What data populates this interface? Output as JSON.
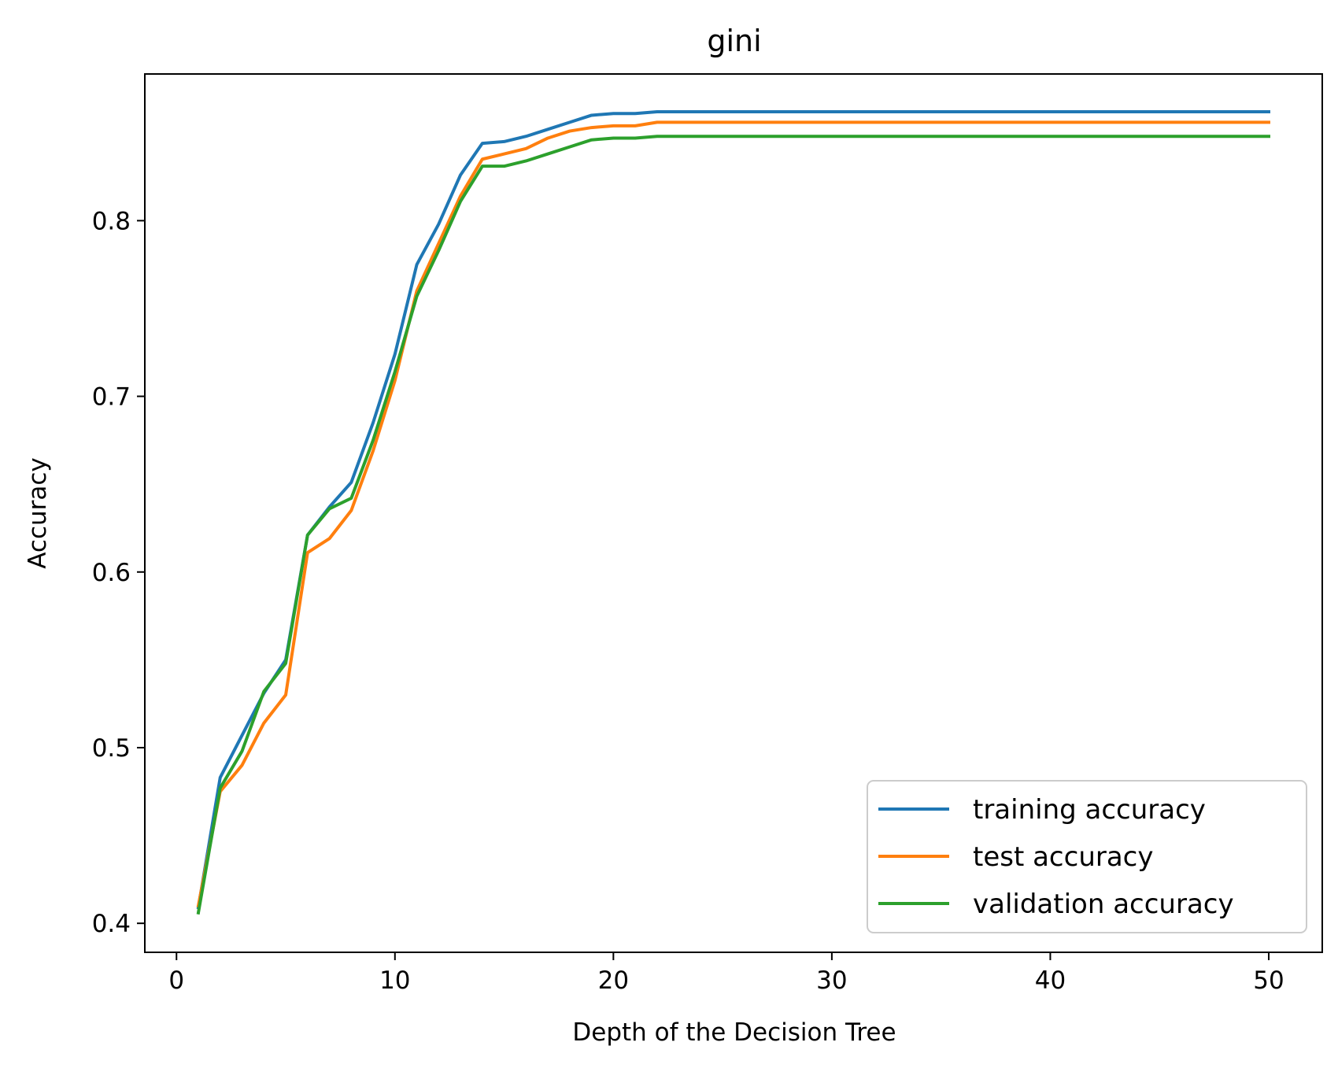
{
  "chart_data": {
    "type": "line",
    "title": "gini",
    "xlabel": "Depth of the Decision Tree",
    "ylabel": "Accuracy",
    "xlim": [
      -1.45,
      52.45
    ],
    "ylim": [
      0.3835,
      0.8835
    ],
    "xticks": [
      0,
      10,
      20,
      30,
      40,
      50
    ],
    "yticks": [
      0.4,
      0.5,
      0.6,
      0.7,
      0.8
    ],
    "xtick_labels": [
      "0",
      "10",
      "20",
      "30",
      "40",
      "50"
    ],
    "ytick_labels": [
      "0.4",
      "0.5",
      "0.6",
      "0.7",
      "0.8"
    ],
    "grid": false,
    "legend_position": "lower right",
    "x": [
      1,
      2,
      3,
      4,
      5,
      6,
      7,
      8,
      9,
      10,
      11,
      12,
      13,
      14,
      15,
      16,
      17,
      18,
      19,
      20,
      21,
      22,
      23,
      24,
      25,
      26,
      27,
      28,
      29,
      30,
      31,
      32,
      33,
      34,
      35,
      36,
      37,
      38,
      39,
      40,
      41,
      42,
      43,
      44,
      45,
      46,
      47,
      48,
      49,
      50
    ],
    "series": [
      {
        "name": "training accuracy",
        "color": "#1f77b4",
        "values": [
          0.409,
          0.483,
          0.507,
          0.531,
          0.55,
          0.621,
          0.637,
          0.651,
          0.685,
          0.724,
          0.775,
          0.798,
          0.826,
          0.844,
          0.845,
          0.848,
          0.852,
          0.856,
          0.86,
          0.861,
          0.861,
          0.862,
          0.862,
          0.862,
          0.862,
          0.862,
          0.862,
          0.862,
          0.862,
          0.862,
          0.862,
          0.862,
          0.862,
          0.862,
          0.862,
          0.862,
          0.862,
          0.862,
          0.862,
          0.862,
          0.862,
          0.862,
          0.862,
          0.862,
          0.862,
          0.862,
          0.862,
          0.862,
          0.862,
          0.862
        ]
      },
      {
        "name": "test accuracy",
        "color": "#ff7f0e",
        "values": [
          0.41,
          0.475,
          0.49,
          0.514,
          0.53,
          0.611,
          0.619,
          0.635,
          0.669,
          0.709,
          0.76,
          0.787,
          0.814,
          0.835,
          0.838,
          0.841,
          0.847,
          0.851,
          0.853,
          0.854,
          0.854,
          0.856,
          0.856,
          0.856,
          0.856,
          0.856,
          0.856,
          0.856,
          0.856,
          0.856,
          0.856,
          0.856,
          0.856,
          0.856,
          0.856,
          0.856,
          0.856,
          0.856,
          0.856,
          0.856,
          0.856,
          0.856,
          0.856,
          0.856,
          0.856,
          0.856,
          0.856,
          0.856,
          0.856,
          0.856
        ]
      },
      {
        "name": "validation accuracy",
        "color": "#2ca02c",
        "values": [
          0.406,
          0.477,
          0.498,
          0.532,
          0.548,
          0.621,
          0.636,
          0.642,
          0.675,
          0.714,
          0.757,
          0.783,
          0.811,
          0.831,
          0.831,
          0.834,
          0.838,
          0.842,
          0.846,
          0.847,
          0.847,
          0.848,
          0.848,
          0.848,
          0.848,
          0.848,
          0.848,
          0.848,
          0.848,
          0.848,
          0.848,
          0.848,
          0.848,
          0.848,
          0.848,
          0.848,
          0.848,
          0.848,
          0.848,
          0.848,
          0.848,
          0.848,
          0.848,
          0.848,
          0.848,
          0.848,
          0.848,
          0.848,
          0.848,
          0.848
        ]
      }
    ]
  }
}
